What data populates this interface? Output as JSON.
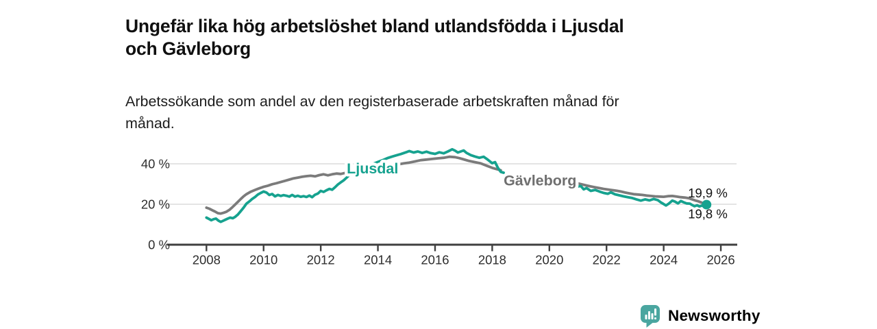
{
  "header": {
    "title": "Ungefär lika hög arbetslöshet bland utlandsfödda i Ljusdal\noch Gävleborg",
    "subtitle": "Arbetssökande som andel av den registerbaserade arbetskraften månad för\nmånad."
  },
  "footer": {
    "brand": "Newsworthy",
    "brand_color": "#4aa6a0"
  },
  "chart_data": {
    "type": "line",
    "title": "Ungefär lika hög arbetslöshet bland utlandsfödda i Ljusdal och Gävleborg",
    "subtitle": "Arbetssökande som andel av den registerbaserade arbetskraften månad för månad.",
    "unit": "percent",
    "xlim": [
      2006.65,
      2026.55
    ],
    "ylim": [
      0,
      50
    ],
    "grid": "horizontal-only",
    "x_ticks": [
      2008,
      2010,
      2012,
      2014,
      2016,
      2018,
      2020,
      2022,
      2024,
      2026
    ],
    "y_ticks": [
      {
        "value": 0,
        "label": "0 %"
      },
      {
        "value": 20,
        "label": "20 %"
      },
      {
        "value": 40,
        "label": "40 %"
      }
    ],
    "series": [
      {
        "name": "Gävleborg",
        "color": "#7b7b7b",
        "label_color": "#6f6f6f",
        "inline_label": {
          "text": "Gävleborg",
          "x": 2018.4,
          "y": 29.3
        },
        "end_label": "19,9 %",
        "end_value": 19.9,
        "end_dot": false,
        "segments": [
          [
            [
              2008.0,
              18.3
            ],
            [
              2008.1,
              17.8
            ],
            [
              2008.2,
              17.1
            ],
            [
              2008.3,
              16.4
            ],
            [
              2008.4,
              15.6
            ],
            [
              2008.5,
              15.4
            ],
            [
              2008.6,
              15.8
            ],
            [
              2008.7,
              16.3
            ],
            [
              2008.8,
              17.2
            ],
            [
              2008.9,
              18.4
            ],
            [
              2009.0,
              19.8
            ],
            [
              2009.1,
              21.2
            ],
            [
              2009.2,
              22.6
            ],
            [
              2009.3,
              23.9
            ],
            [
              2009.4,
              25.0
            ],
            [
              2009.55,
              26.2
            ],
            [
              2009.7,
              27.1
            ],
            [
              2009.85,
              27.9
            ],
            [
              2010.0,
              28.6
            ],
            [
              2010.15,
              29.2
            ],
            [
              2010.3,
              29.9
            ],
            [
              2010.45,
              30.4
            ],
            [
              2010.6,
              31.0
            ],
            [
              2010.75,
              31.6
            ],
            [
              2010.9,
              32.2
            ],
            [
              2011.05,
              32.8
            ],
            [
              2011.2,
              33.2
            ],
            [
              2011.35,
              33.6
            ],
            [
              2011.5,
              33.9
            ],
            [
              2011.65,
              34.1
            ],
            [
              2011.8,
              33.8
            ],
            [
              2011.95,
              34.4
            ],
            [
              2012.1,
              34.8
            ],
            [
              2012.25,
              34.3
            ],
            [
              2012.4,
              34.8
            ],
            [
              2012.55,
              35.2
            ],
            [
              2012.7,
              35.0
            ],
            [
              2012.85,
              35.5
            ],
            [
              2013.0,
              35.8
            ],
            [
              2013.15,
              36.5
            ],
            [
              2013.3,
              36.9
            ],
            [
              2013.5,
              37.2
            ],
            [
              2013.7,
              37.5
            ],
            [
              2013.9,
              37.8
            ],
            [
              2014.1,
              38.1
            ],
            [
              2014.3,
              38.6
            ],
            [
              2014.5,
              39.1
            ],
            [
              2014.7,
              39.7
            ],
            [
              2014.9,
              40.2
            ],
            [
              2015.1,
              40.6
            ],
            [
              2015.3,
              41.2
            ],
            [
              2015.5,
              41.8
            ],
            [
              2015.7,
              42.1
            ],
            [
              2015.9,
              42.4
            ],
            [
              2016.1,
              42.7
            ],
            [
              2016.3,
              43.0
            ],
            [
              2016.5,
              43.5
            ],
            [
              2016.7,
              43.3
            ],
            [
              2016.85,
              42.8
            ],
            [
              2017.0,
              42.2
            ],
            [
              2017.2,
              41.4
            ],
            [
              2017.4,
              40.8
            ],
            [
              2017.6,
              40.2
            ],
            [
              2017.8,
              39.1
            ],
            [
              2018.0,
              38.0
            ],
            [
              2018.15,
              37.4
            ],
            [
              2018.3,
              36.8
            ]
          ],
          [
            [
              2021.0,
              30.3
            ],
            [
              2021.15,
              29.8
            ],
            [
              2021.3,
              29.3
            ],
            [
              2021.45,
              28.8
            ],
            [
              2021.6,
              28.4
            ],
            [
              2021.75,
              28.0
            ],
            [
              2021.9,
              27.6
            ],
            [
              2022.05,
              27.3
            ],
            [
              2022.2,
              27.0
            ],
            [
              2022.35,
              26.7
            ],
            [
              2022.5,
              26.3
            ],
            [
              2022.65,
              25.8
            ],
            [
              2022.8,
              25.4
            ],
            [
              2022.95,
              25.0
            ],
            [
              2023.1,
              24.8
            ],
            [
              2023.25,
              24.6
            ],
            [
              2023.4,
              24.3
            ],
            [
              2023.55,
              24.1
            ],
            [
              2023.7,
              23.9
            ],
            [
              2023.85,
              23.8
            ],
            [
              2024.0,
              23.7
            ],
            [
              2024.15,
              24.0
            ],
            [
              2024.3,
              24.1
            ],
            [
              2024.45,
              23.8
            ],
            [
              2024.6,
              23.5
            ],
            [
              2024.75,
              23.3
            ],
            [
              2024.9,
              22.9
            ],
            [
              2025.0,
              22.4
            ],
            [
              2025.1,
              21.9
            ],
            [
              2025.2,
              21.5
            ],
            [
              2025.3,
              21.0
            ],
            [
              2025.4,
              20.4
            ],
            [
              2025.5,
              19.9
            ]
          ]
        ]
      },
      {
        "name": "Ljusdal",
        "color": "#16a28f",
        "label_color": "#16a28f",
        "inline_label": {
          "text": "Ljusdal",
          "x": 2012.91,
          "y": 35.2
        },
        "end_label": "19,8 %",
        "end_value": 19.8,
        "end_dot": true,
        "segments": [
          [
            [
              2008.0,
              13.4
            ],
            [
              2008.08,
              12.8
            ],
            [
              2008.17,
              12.1
            ],
            [
              2008.25,
              12.6
            ],
            [
              2008.33,
              12.9
            ],
            [
              2008.42,
              11.9
            ],
            [
              2008.5,
              11.3
            ],
            [
              2008.58,
              11.8
            ],
            [
              2008.67,
              12.4
            ],
            [
              2008.75,
              12.9
            ],
            [
              2008.83,
              13.4
            ],
            [
              2008.92,
              13.1
            ],
            [
              2009.0,
              13.7
            ],
            [
              2009.1,
              14.9
            ],
            [
              2009.2,
              16.6
            ],
            [
              2009.3,
              18.3
            ],
            [
              2009.4,
              20.3
            ],
            [
              2009.5,
              21.4
            ],
            [
              2009.6,
              22.6
            ],
            [
              2009.7,
              23.6
            ],
            [
              2009.8,
              24.8
            ],
            [
              2009.9,
              25.6
            ],
            [
              2010.0,
              26.3
            ],
            [
              2010.1,
              25.8
            ],
            [
              2010.2,
              24.6
            ],
            [
              2010.3,
              25.1
            ],
            [
              2010.4,
              23.9
            ],
            [
              2010.5,
              24.6
            ],
            [
              2010.6,
              24.1
            ],
            [
              2010.7,
              24.5
            ],
            [
              2010.8,
              24.2
            ],
            [
              2010.9,
              23.8
            ],
            [
              2011.0,
              24.6
            ],
            [
              2011.1,
              23.8
            ],
            [
              2011.2,
              24.2
            ],
            [
              2011.3,
              23.7
            ],
            [
              2011.4,
              24.0
            ],
            [
              2011.5,
              23.6
            ],
            [
              2011.6,
              24.3
            ],
            [
              2011.7,
              23.5
            ],
            [
              2011.8,
              24.7
            ],
            [
              2011.9,
              25.3
            ],
            [
              2012.0,
              26.6
            ],
            [
              2012.1,
              26.1
            ],
            [
              2012.2,
              26.9
            ],
            [
              2012.3,
              27.6
            ],
            [
              2012.4,
              27.2
            ],
            [
              2012.5,
              28.4
            ],
            [
              2012.6,
              29.8
            ],
            [
              2012.7,
              30.8
            ],
            [
              2012.8,
              31.8
            ],
            [
              2012.9,
              33.1
            ],
            [
              2013.0,
              34.4
            ],
            [
              2013.1,
              35.3
            ],
            [
              2013.2,
              36.1
            ],
            [
              2013.4,
              37.5
            ],
            [
              2013.6,
              38.6
            ],
            [
              2013.8,
              39.8
            ],
            [
              2014.0,
              40.9
            ],
            [
              2014.2,
              42.0
            ],
            [
              2014.35,
              42.9
            ],
            [
              2014.5,
              43.6
            ],
            [
              2014.65,
              44.2
            ],
            [
              2014.8,
              44.8
            ],
            [
              2015.0,
              45.8
            ],
            [
              2015.1,
              46.3
            ],
            [
              2015.25,
              45.6
            ],
            [
              2015.4,
              46.1
            ],
            [
              2015.55,
              45.4
            ],
            [
              2015.7,
              46.0
            ],
            [
              2015.85,
              45.3
            ],
            [
              2016.0,
              44.9
            ],
            [
              2016.15,
              45.7
            ],
            [
              2016.3,
              45.2
            ],
            [
              2016.45,
              46.1
            ],
            [
              2016.6,
              47.2
            ],
            [
              2016.7,
              46.5
            ],
            [
              2016.8,
              45.6
            ],
            [
              2016.9,
              46.1
            ],
            [
              2017.0,
              46.6
            ],
            [
              2017.1,
              45.4
            ],
            [
              2017.25,
              44.3
            ],
            [
              2017.4,
              43.6
            ],
            [
              2017.55,
              43.0
            ],
            [
              2017.7,
              43.5
            ],
            [
              2017.85,
              42.0
            ],
            [
              2018.0,
              40.3
            ],
            [
              2018.1,
              40.8
            ],
            [
              2018.2,
              38.0
            ],
            [
              2018.3,
              36.0
            ],
            [
              2018.4,
              35.6
            ]
          ],
          [
            [
              2021.0,
              28.8
            ],
            [
              2021.1,
              29.0
            ],
            [
              2021.2,
              27.4
            ],
            [
              2021.3,
              28.0
            ],
            [
              2021.45,
              26.6
            ],
            [
              2021.6,
              27.1
            ],
            [
              2021.75,
              26.3
            ],
            [
              2021.9,
              25.6
            ],
            [
              2022.05,
              25.2
            ],
            [
              2022.15,
              25.9
            ],
            [
              2022.3,
              24.9
            ],
            [
              2022.45,
              24.4
            ],
            [
              2022.6,
              23.9
            ],
            [
              2022.75,
              23.5
            ],
            [
              2022.9,
              23.1
            ],
            [
              2023.05,
              22.4
            ],
            [
              2023.2,
              21.8
            ],
            [
              2023.35,
              22.4
            ],
            [
              2023.5,
              21.9
            ],
            [
              2023.65,
              22.6
            ],
            [
              2023.8,
              22.0
            ],
            [
              2023.9,
              20.9
            ],
            [
              2024.0,
              20.1
            ],
            [
              2024.08,
              19.4
            ],
            [
              2024.17,
              20.2
            ],
            [
              2024.3,
              21.8
            ],
            [
              2024.4,
              21.3
            ],
            [
              2024.5,
              20.4
            ],
            [
              2024.6,
              21.6
            ],
            [
              2024.7,
              21.0
            ],
            [
              2024.8,
              20.4
            ],
            [
              2024.92,
              20.3
            ],
            [
              2025.0,
              19.6
            ],
            [
              2025.08,
              19.0
            ],
            [
              2025.17,
              19.5
            ],
            [
              2025.25,
              18.9
            ],
            [
              2025.33,
              19.3
            ],
            [
              2025.42,
              19.6
            ],
            [
              2025.5,
              19.8
            ]
          ]
        ]
      }
    ]
  }
}
